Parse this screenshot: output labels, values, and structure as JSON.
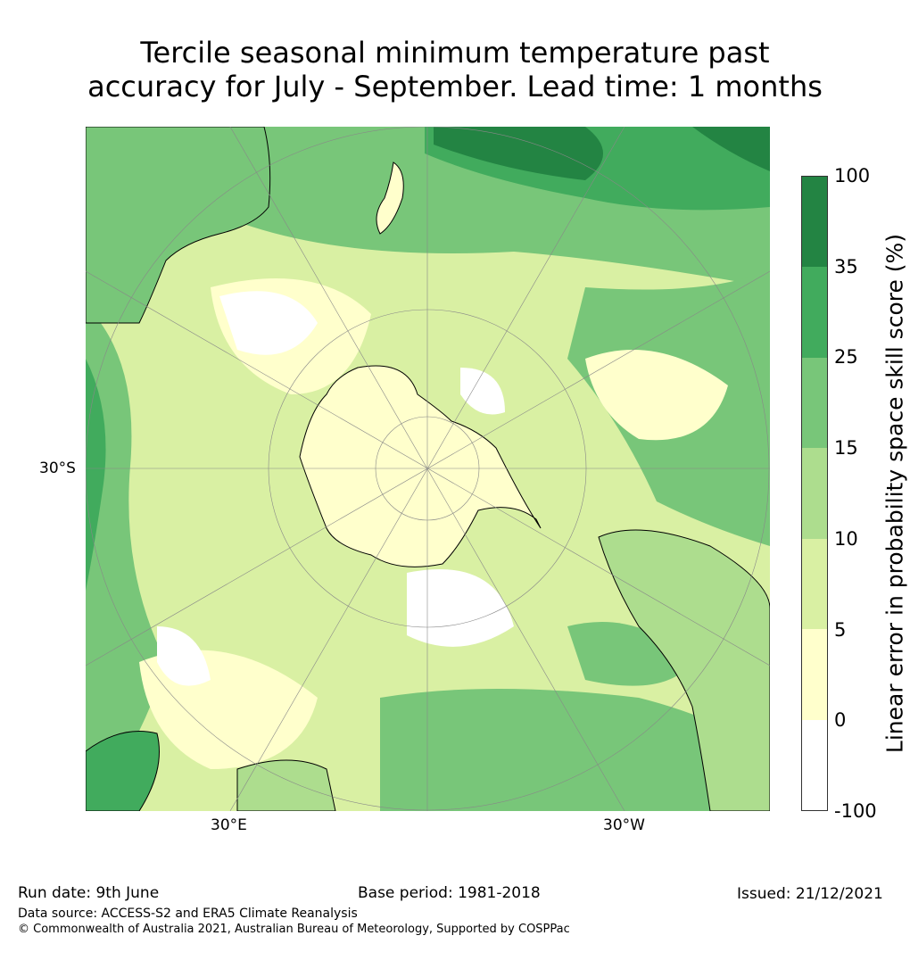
{
  "title_line1": "Tercile seasonal minimum temperature past",
  "title_line2": "accuracy for July - September. Lead time: 1 months",
  "map": {
    "projection": "south-polar-stereographic",
    "lat_label": "30°S",
    "lon_labels": [
      "30°E",
      "30°W"
    ],
    "fill_colors": {
      "light": "#ffffcc",
      "pale": "#d9f0a3",
      "green": "#78c679",
      "mid": "#41ab5d",
      "dark": "#238443",
      "white": "#ffffff"
    }
  },
  "colorbar": {
    "label": "Linear error in probability space skill score (%)",
    "ticks": [
      "100",
      "35",
      "25",
      "15",
      "10",
      "5",
      "0",
      "-100"
    ],
    "colors": [
      "#238443",
      "#41ab5d",
      "#78c679",
      "#addd8e",
      "#d9f0a3",
      "#ffffcc",
      "#ffffff"
    ]
  },
  "footer": {
    "run_date": "Run date: 9th June",
    "base_period": "Base period: 1981-2018",
    "issued": "Issued: 21/12/2021",
    "data_source": "Data source: ACCESS-S2 and ERA5 Climate Reanalysis",
    "copyright": "© Commonwealth of Australia 2021, Australian Bureau of Meteorology, Supported by COSPPac"
  }
}
